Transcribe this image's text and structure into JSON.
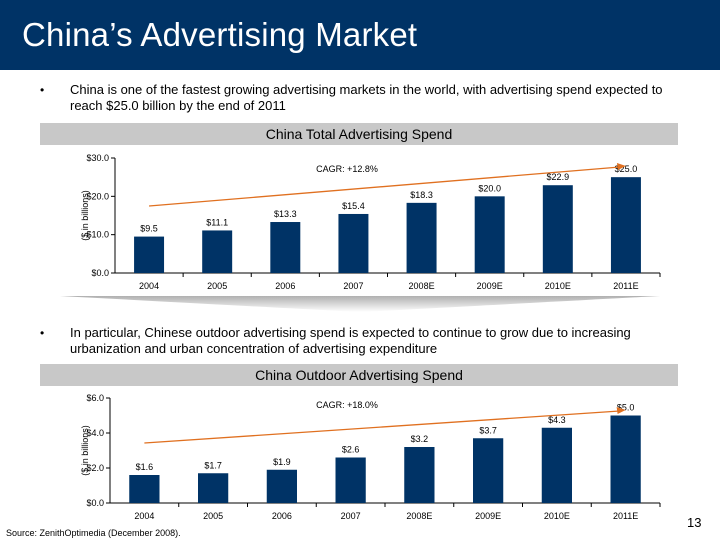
{
  "title": "China’s Advertising Market",
  "colors": {
    "header": "#003366",
    "bar": "#003366",
    "arrow": "#e07020",
    "band": "#c8c8c8"
  },
  "bullets": [
    {
      "icon": "bullet-dot",
      "text": "China is one of the fastest growing advertising markets in the world, with advertising spend expected to reach $25.0 billion by the end of 2011"
    },
    {
      "icon": "bullet-dot",
      "text": "In particular, Chinese outdoor advertising spend is expected to continue to grow due to increasing urbanization and urban concentration of advertising expenditure"
    }
  ],
  "bullet_symbol": "•",
  "source": "Source: ZenithOptimedia (December 2008).",
  "page_number": "13",
  "chart_data": [
    {
      "type": "bar",
      "title": "China Total Advertising Spend",
      "ylabel": "($ in billions)",
      "annotation": "CAGR: +12.8%",
      "categories": [
        "2004",
        "2005",
        "2006",
        "2007",
        "2008E",
        "2009E",
        "2010E",
        "2011E"
      ],
      "values": [
        9.5,
        11.1,
        13.3,
        15.4,
        18.3,
        20.0,
        22.9,
        25.0
      ],
      "value_labels": [
        "$9.5",
        "$11.1",
        "$13.3",
        "$15.4",
        "$18.3",
        "$20.0",
        "$22.9",
        "$25.0"
      ],
      "yticks": [
        0,
        10,
        20,
        30
      ],
      "ytick_labels": [
        "$0.0",
        "$10.0",
        "$20.0",
        "$30.0"
      ],
      "ylim": [
        0,
        30
      ],
      "grid": false
    },
    {
      "type": "bar",
      "title": "China Outdoor Advertising Spend",
      "ylabel": "($ in billions)",
      "annotation": "CAGR: +18.0%",
      "categories": [
        "2004",
        "2005",
        "2006",
        "2007",
        "2008E",
        "2009E",
        "2010E",
        "2011E"
      ],
      "values": [
        1.6,
        1.7,
        1.9,
        2.6,
        3.2,
        3.7,
        4.3,
        5.0
      ],
      "value_labels": [
        "$1.6",
        "$1.7",
        "$1.9",
        "$2.6",
        "$3.2",
        "$3.7",
        "$4.3",
        "$5.0"
      ],
      "yticks": [
        0,
        2,
        4,
        6
      ],
      "ytick_labels": [
        "$0.0",
        "$2.0",
        "$4.0",
        "$6.0"
      ],
      "ylim": [
        0,
        6
      ],
      "grid": false
    }
  ]
}
